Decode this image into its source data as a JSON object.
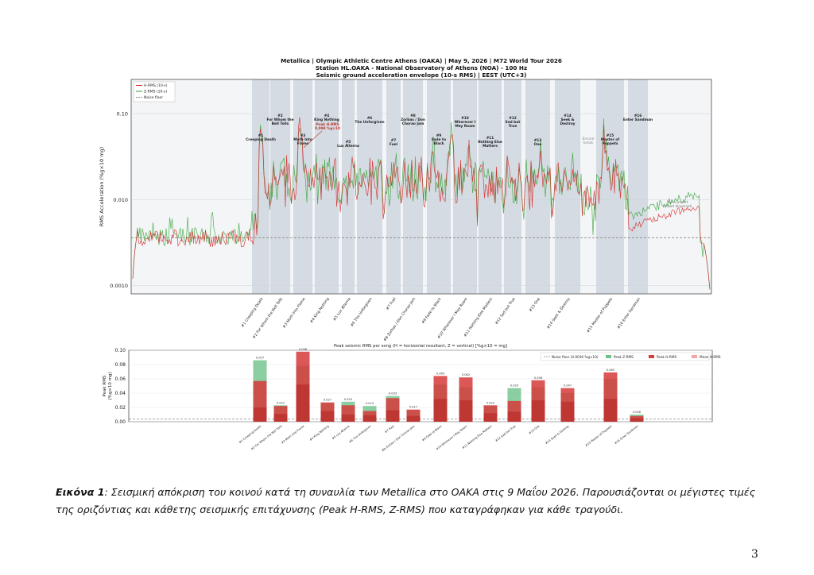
{
  "document": {
    "title_lines": [
      "Metallica  |  Olympic Athletic Centre Athens (OAKA)  |  May 9, 2026  |  M72 World Tour 2026",
      "Station HL.OAKA - National Observatory of Athens (NOA) - 100 Hz",
      "Seismic ground acceleration envelope (10-s RMS)  |  EEST (UTC+3)"
    ],
    "caption_label": "Εικόνα 1",
    "caption_text": ": Σεισμική απόκριση του κοινού κατά τη συναυλία των Metallica στο ΟΑΚΑ στις 9 Μαΐου 2026. Παρουσιάζονται οι μέγιστες τιμές της οριζόντιας και κάθετης σεισμικής επιτάχυνσης (Peak H-RMS, Z-RMS) που καταγράφηκαν για κάθε τραγούδι.",
    "page_number": "3"
  },
  "chart_data": [
    {
      "type": "line",
      "ylabel": "RMS Acceleration  (%g×10  mg)",
      "yscale": "log",
      "ylim": [
        0.0008,
        0.25
      ],
      "yticks": [
        "0.0010",
        "0.010",
        "0.10"
      ],
      "legend": [
        "H-RMS (10-s)",
        "Z-RMS (10-s)",
        "Noise floor"
      ],
      "legend_position": "top-left",
      "colors": {
        "h": "#d62728",
        "z": "#2ca02c",
        "noise": "#888888",
        "band": "#c9d2dc"
      },
      "noise_floor": 0.0036,
      "songs": [
        {
          "num": "#1",
          "name": "Creeping Death",
          "label": "#1 Creeping Death"
        },
        {
          "num": "#2",
          "name": "For Whom the Bell Tolls",
          "label": "#2 For Whom the Bell Tolls"
        },
        {
          "num": "#3",
          "name": "Moth Into Flame",
          "label": "#3 Moth Into Flame"
        },
        {
          "num": "#4",
          "name": "King Nothing",
          "label": "#4 King Nothing"
        },
        {
          "num": "#5",
          "name": "Lux Æterna",
          "label": "#5 Lux Æterna"
        },
        {
          "num": "#6",
          "name": "The Unforgiven",
          "label": "#6 The Unforgiven"
        },
        {
          "num": "#7",
          "name": "Fuel",
          "label": "#7 Fuel"
        },
        {
          "num": "#8",
          "name": "Zorbas / Don Chorao Jam",
          "label": "#8 Zorbas / Don Chorao Jam"
        },
        {
          "num": "#9",
          "name": "Fade to Black",
          "label": "#9 Fade to Black"
        },
        {
          "num": "#10",
          "name": "Wherever I May Roam",
          "label": "#10 Wherever I May Roam"
        },
        {
          "num": "#11",
          "name": "Nothing Else Matters",
          "label": "#11 Nothing Else Matters"
        },
        {
          "num": "#12",
          "name": "Sad but True",
          "label": "#12 Sad but True"
        },
        {
          "num": "#13",
          "name": "One",
          "label": "#13 One"
        },
        {
          "num": "#14",
          "name": "Seek & Destroy",
          "label": "#14 Seek & Destroy"
        },
        {
          "num": "#15",
          "name": "Master of Puppets",
          "label": "#15 Master of Puppets"
        },
        {
          "num": "#16",
          "name": "Enter Sandman",
          "label": "#16 Enter Sandman"
        }
      ],
      "annotations": {
        "peak": "Peak H-RMS\n0.098 %g×10",
        "encore": "Encore\nbreak",
        "post_concert": "Post-concert\n(crowd dispersal)"
      }
    },
    {
      "type": "bar",
      "title": "Peak seismic RMS per song  (H = horizontal resultant, Z = vertical)  [%g×10 = mg]",
      "ylabel": "Peak RMS\n(%g×10 mg)",
      "ylim": [
        0,
        0.1
      ],
      "yticks": [
        "0.00",
        "0.02",
        "0.04",
        "0.06",
        "0.08",
        "0.10"
      ],
      "legend": [
        "Noise floor  (0.0036 %g×10)",
        "Peak Z-RMS",
        "Peak H-RMS",
        "Mean H-RMS"
      ],
      "legend_position": "top-right",
      "categories": [
        "#1 Creeping Death",
        "#2 For Whom the Bell Tolls",
        "#3 Moth Into Flame",
        "#4 King Nothing",
        "#5 Lux Æterna",
        "#6 The Unforgiven",
        "#7 Fuel",
        "#8 Zorbas / Don Chorao Jam",
        "#9 Fade to Black",
        "#10 Wherever I May Roam",
        "#11 Nothing Else Matters",
        "#12 Sad but True",
        "#13 One",
        "#14 Seek & Destroy",
        "#15 Master of Puppets",
        "#16 Enter Sandman"
      ],
      "series": [
        {
          "name": "Peak Z-RMS",
          "values": [
            0.086,
            0.023,
            0.078,
            0.026,
            0.028,
            0.022,
            0.036,
            0.016,
            0.052,
            0.048,
            0.022,
            0.047,
            0.048,
            0.04,
            0.06,
            0.01
          ]
        },
        {
          "name": "Peak H-RMS",
          "values": [
            0.057,
            0.022,
            0.098,
            0.027,
            0.023,
            0.015,
            0.033,
            0.017,
            0.064,
            0.062,
            0.023,
            0.029,
            0.058,
            0.047,
            0.069,
            0.008
          ]
        },
        {
          "name": "Mean H-RMS",
          "values": [
            0.02,
            0.011,
            0.052,
            0.015,
            0.01,
            0.009,
            0.016,
            0.008,
            0.032,
            0.03,
            0.012,
            0.014,
            0.03,
            0.028,
            0.032,
            0.005
          ]
        }
      ],
      "data_labels": [
        "0.057",
        "0.022",
        "0.098",
        "0.027",
        "0.023",
        "0.015",
        "0.033",
        "0.017",
        "0.064",
        "0.062",
        "0.023",
        "0.029",
        "0.058",
        "0.047",
        "0.069",
        "0.008"
      ],
      "noise_floor": 0.0036,
      "colors": {
        "z": "#6dc28a",
        "h": "#d63a3a",
        "mean": "#b31d1d",
        "noise": "#888888"
      }
    }
  ]
}
